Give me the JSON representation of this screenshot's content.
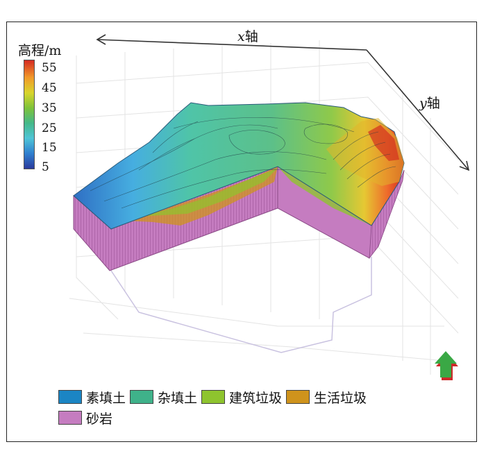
{
  "colorbar": {
    "title": "高程/m",
    "ticks": [
      "55",
      "45",
      "35",
      "25",
      "15",
      "5"
    ],
    "colors": [
      "#2a3a9c",
      "#2f7fcf",
      "#4fc4d6",
      "#44b889",
      "#7dc23a",
      "#d8d52c",
      "#f19a2a",
      "#d42a22"
    ]
  },
  "axes": {
    "x_label": "x",
    "x_suffix": "轴",
    "y_label": "y",
    "y_suffix": "轴"
  },
  "legend": {
    "items": [
      {
        "label": "素填土",
        "color": "#1b85c4"
      },
      {
        "label": "杂填土",
        "color": "#3fb28a"
      },
      {
        "label": "建筑垃圾",
        "color": "#8ec42e"
      },
      {
        "label": "生活垃圾",
        "color": "#cf931c"
      },
      {
        "label": "砂岩",
        "color": "#c57cc0"
      }
    ]
  },
  "north_arrow": {
    "icon": "north-arrow-icon",
    "colors": [
      "#3aa845",
      "#cc2a2a"
    ]
  }
}
